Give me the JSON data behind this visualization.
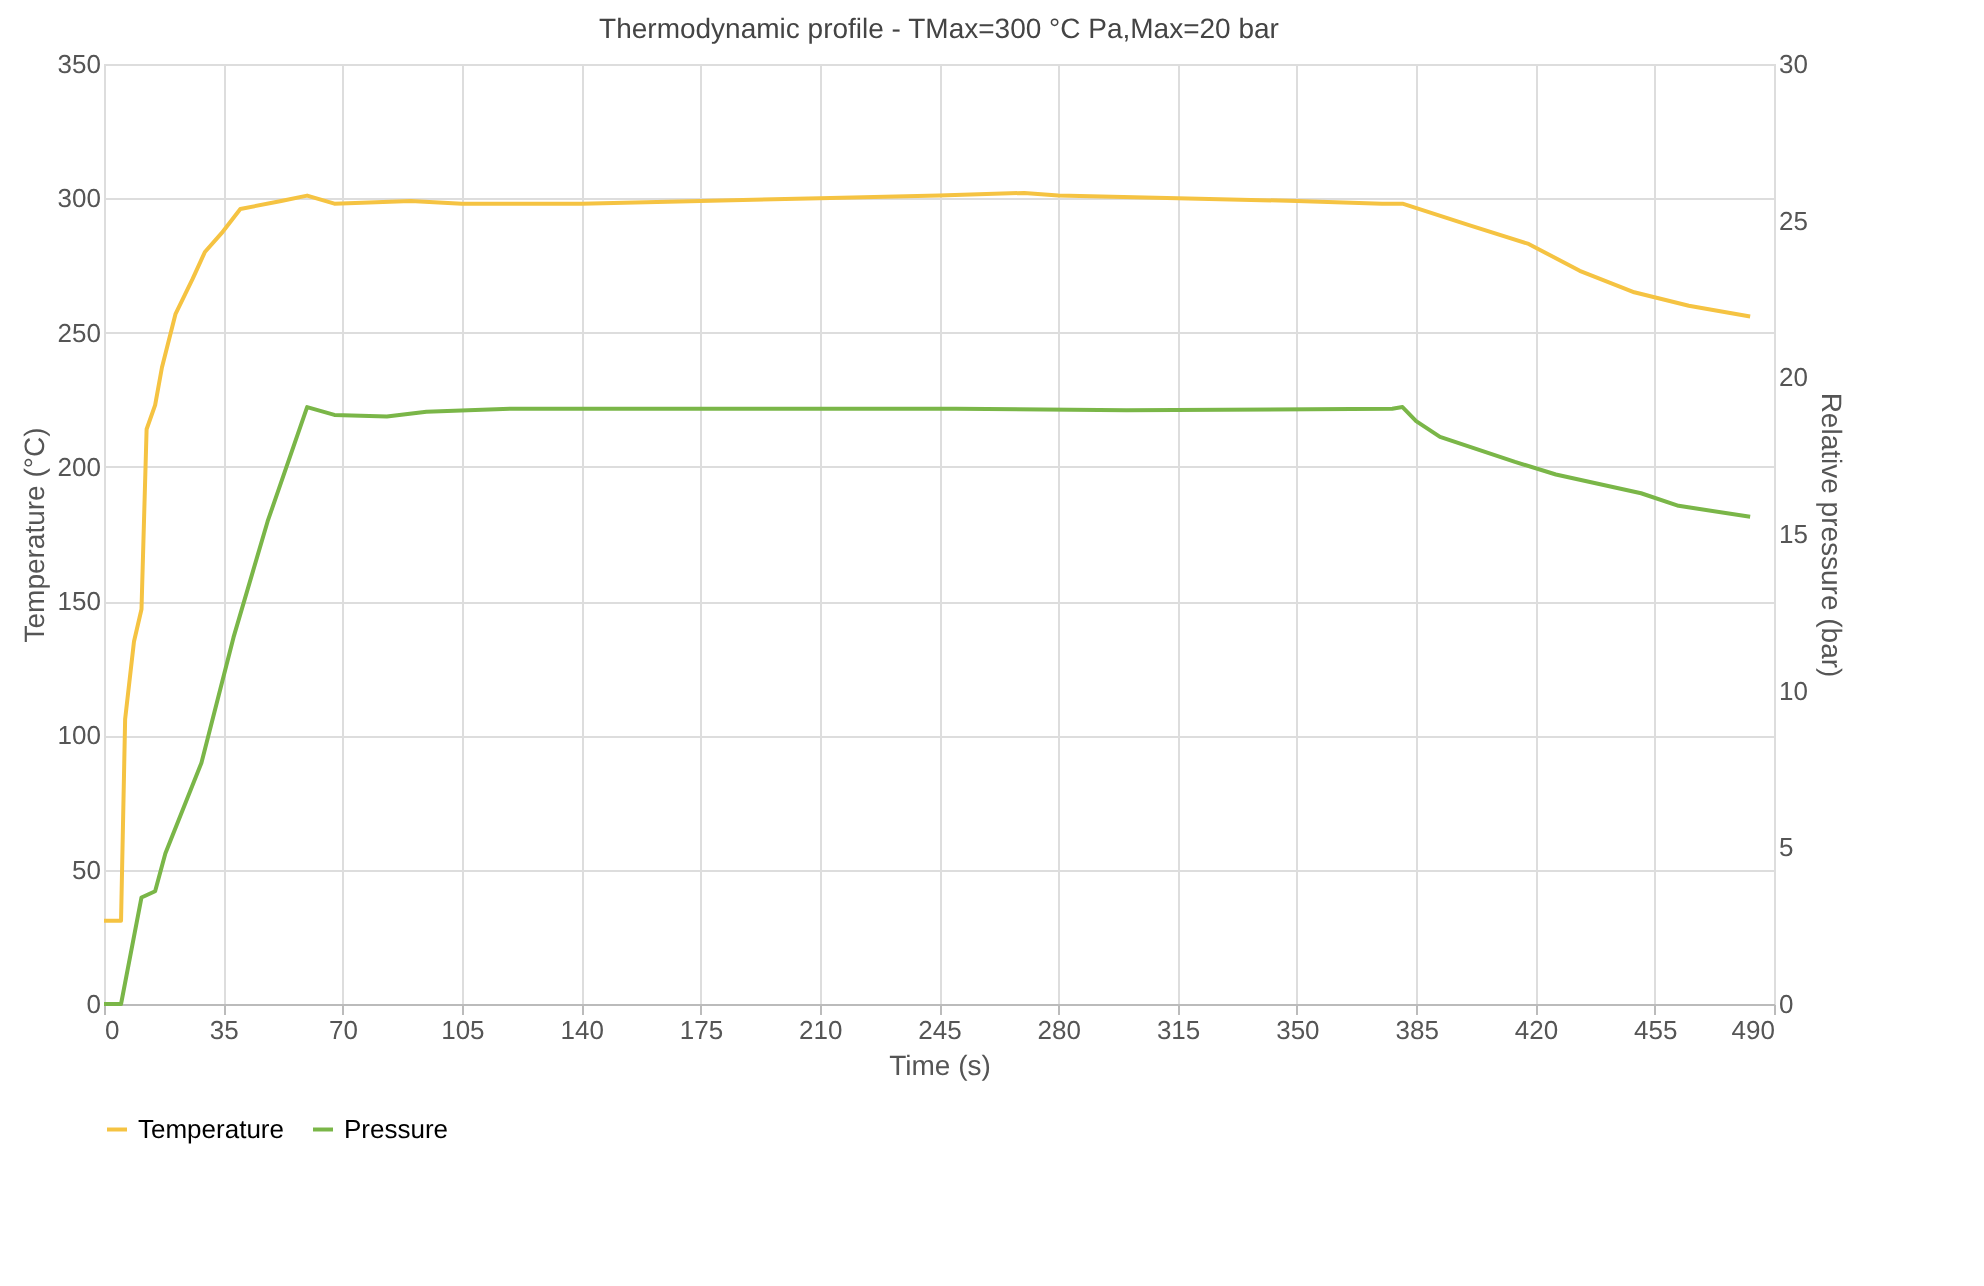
{
  "chart_data": {
    "type": "line",
    "title": "Thermodynamic profile - TMax=300 °C  Pa,Max=20 bar",
    "xlabel": "Time (s)",
    "ylabel": "Temperature (°C)",
    "y2label": "Relative pressure (bar)",
    "xlim": [
      0,
      490
    ],
    "xticks": [
      0,
      35,
      70,
      105,
      140,
      175,
      210,
      245,
      280,
      315,
      350,
      385,
      420,
      455,
      490
    ],
    "ylim": [
      0,
      350
    ],
    "yticks": [
      0,
      50,
      100,
      150,
      200,
      250,
      300,
      350
    ],
    "y2lim": [
      0,
      30
    ],
    "y2ticks": [
      0,
      5,
      10,
      15,
      20,
      25,
      30
    ],
    "grid": true,
    "legend": "bottom",
    "marker": "none",
    "line_style": "solid",
    "series": [
      {
        "name": "Temperature",
        "color": "#f5c342",
        "x": [
          0,
          5,
          6.2,
          8.8,
          11,
          12.5,
          15,
          17,
          21,
          26,
          29.6,
          34.5,
          40,
          52,
          59.6,
          67.6,
          90,
          105,
          140,
          175,
          210,
          245,
          270,
          280,
          315,
          350,
          375,
          381,
          400.5,
          418,
          433,
          449,
          465,
          483
        ],
        "values": [
          31,
          31,
          106,
          135,
          147,
          214,
          223,
          237,
          257,
          270,
          280,
          287,
          296,
          299,
          301,
          298,
          299,
          298,
          298,
          299,
          300,
          301,
          302,
          301,
          300,
          299,
          298,
          298,
          290,
          283,
          273,
          265,
          260,
          256
        ]
      },
      {
        "name": "Pressure",
        "color": "#7ab648",
        "axis": "y2",
        "x": [
          0,
          5,
          11,
          15,
          18,
          28.6,
          38,
          48,
          59.6,
          67.6,
          83,
          94.6,
          120,
          175,
          250,
          300,
          378,
          381,
          385,
          392,
          414,
          426,
          451,
          462,
          483
        ],
        "values": [
          0,
          0,
          3.4,
          3.6,
          4.8,
          7.7,
          11.7,
          15.4,
          19.05,
          18.8,
          18.75,
          18.9,
          19.0,
          19.0,
          19.0,
          18.95,
          19.0,
          19.05,
          18.6,
          18.1,
          17.3,
          16.9,
          16.3,
          15.9,
          15.55
        ]
      }
    ]
  }
}
